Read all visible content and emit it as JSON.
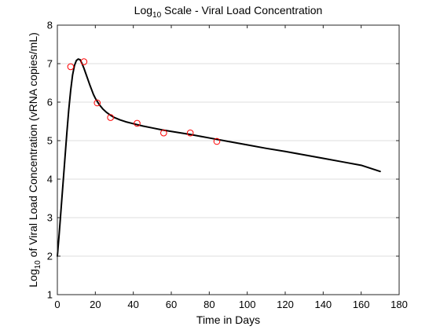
{
  "chart_data": {
    "type": "line",
    "title": {
      "prefix": "Log",
      "subscript": "10",
      "rest": " Scale - Viral Load Concentration"
    },
    "xlabel": "Time in Days",
    "ylabel": {
      "prefix": "Log",
      "subscript": "10",
      "rest": " of Viral Load Concentration (vRNA copies/mL)"
    },
    "xlim": [
      0,
      180
    ],
    "ylim": [
      1,
      8
    ],
    "x_ticks": [
      0,
      20,
      40,
      60,
      80,
      100,
      120,
      140,
      160,
      180
    ],
    "y_ticks": [
      1,
      2,
      3,
      4,
      5,
      6,
      7,
      8
    ],
    "grid": "horizontal",
    "series": [
      {
        "type": "line",
        "color": "#000000",
        "x": [
          0,
          1,
          2,
          3,
          4,
          5,
          6,
          7,
          8,
          9,
          10,
          11,
          12,
          13,
          14,
          15,
          16,
          17,
          18,
          19,
          20,
          22,
          24,
          26,
          28,
          30,
          33,
          36,
          40,
          45,
          50,
          55,
          60,
          70,
          80,
          90,
          100,
          110,
          120,
          130,
          140,
          150,
          160,
          170
        ],
        "y": [
          2.0,
          2.6,
          3.25,
          3.9,
          4.55,
          5.2,
          5.8,
          6.3,
          6.7,
          6.95,
          7.08,
          7.12,
          7.1,
          7.0,
          6.88,
          6.74,
          6.6,
          6.46,
          6.33,
          6.2,
          6.1,
          5.94,
          5.82,
          5.73,
          5.66,
          5.6,
          5.54,
          5.49,
          5.44,
          5.38,
          5.33,
          5.28,
          5.24,
          5.16,
          5.07,
          4.98,
          4.89,
          4.8,
          4.72,
          4.63,
          4.54,
          4.45,
          4.36,
          4.2
        ]
      },
      {
        "type": "scatter",
        "marker": "circle-open",
        "color": "#ff0000",
        "x": [
          7,
          14,
          21,
          28,
          42,
          56,
          70,
          84
        ],
        "y": [
          6.92,
          7.05,
          5.98,
          5.6,
          5.45,
          5.2,
          5.2,
          4.98
        ]
      }
    ]
  }
}
